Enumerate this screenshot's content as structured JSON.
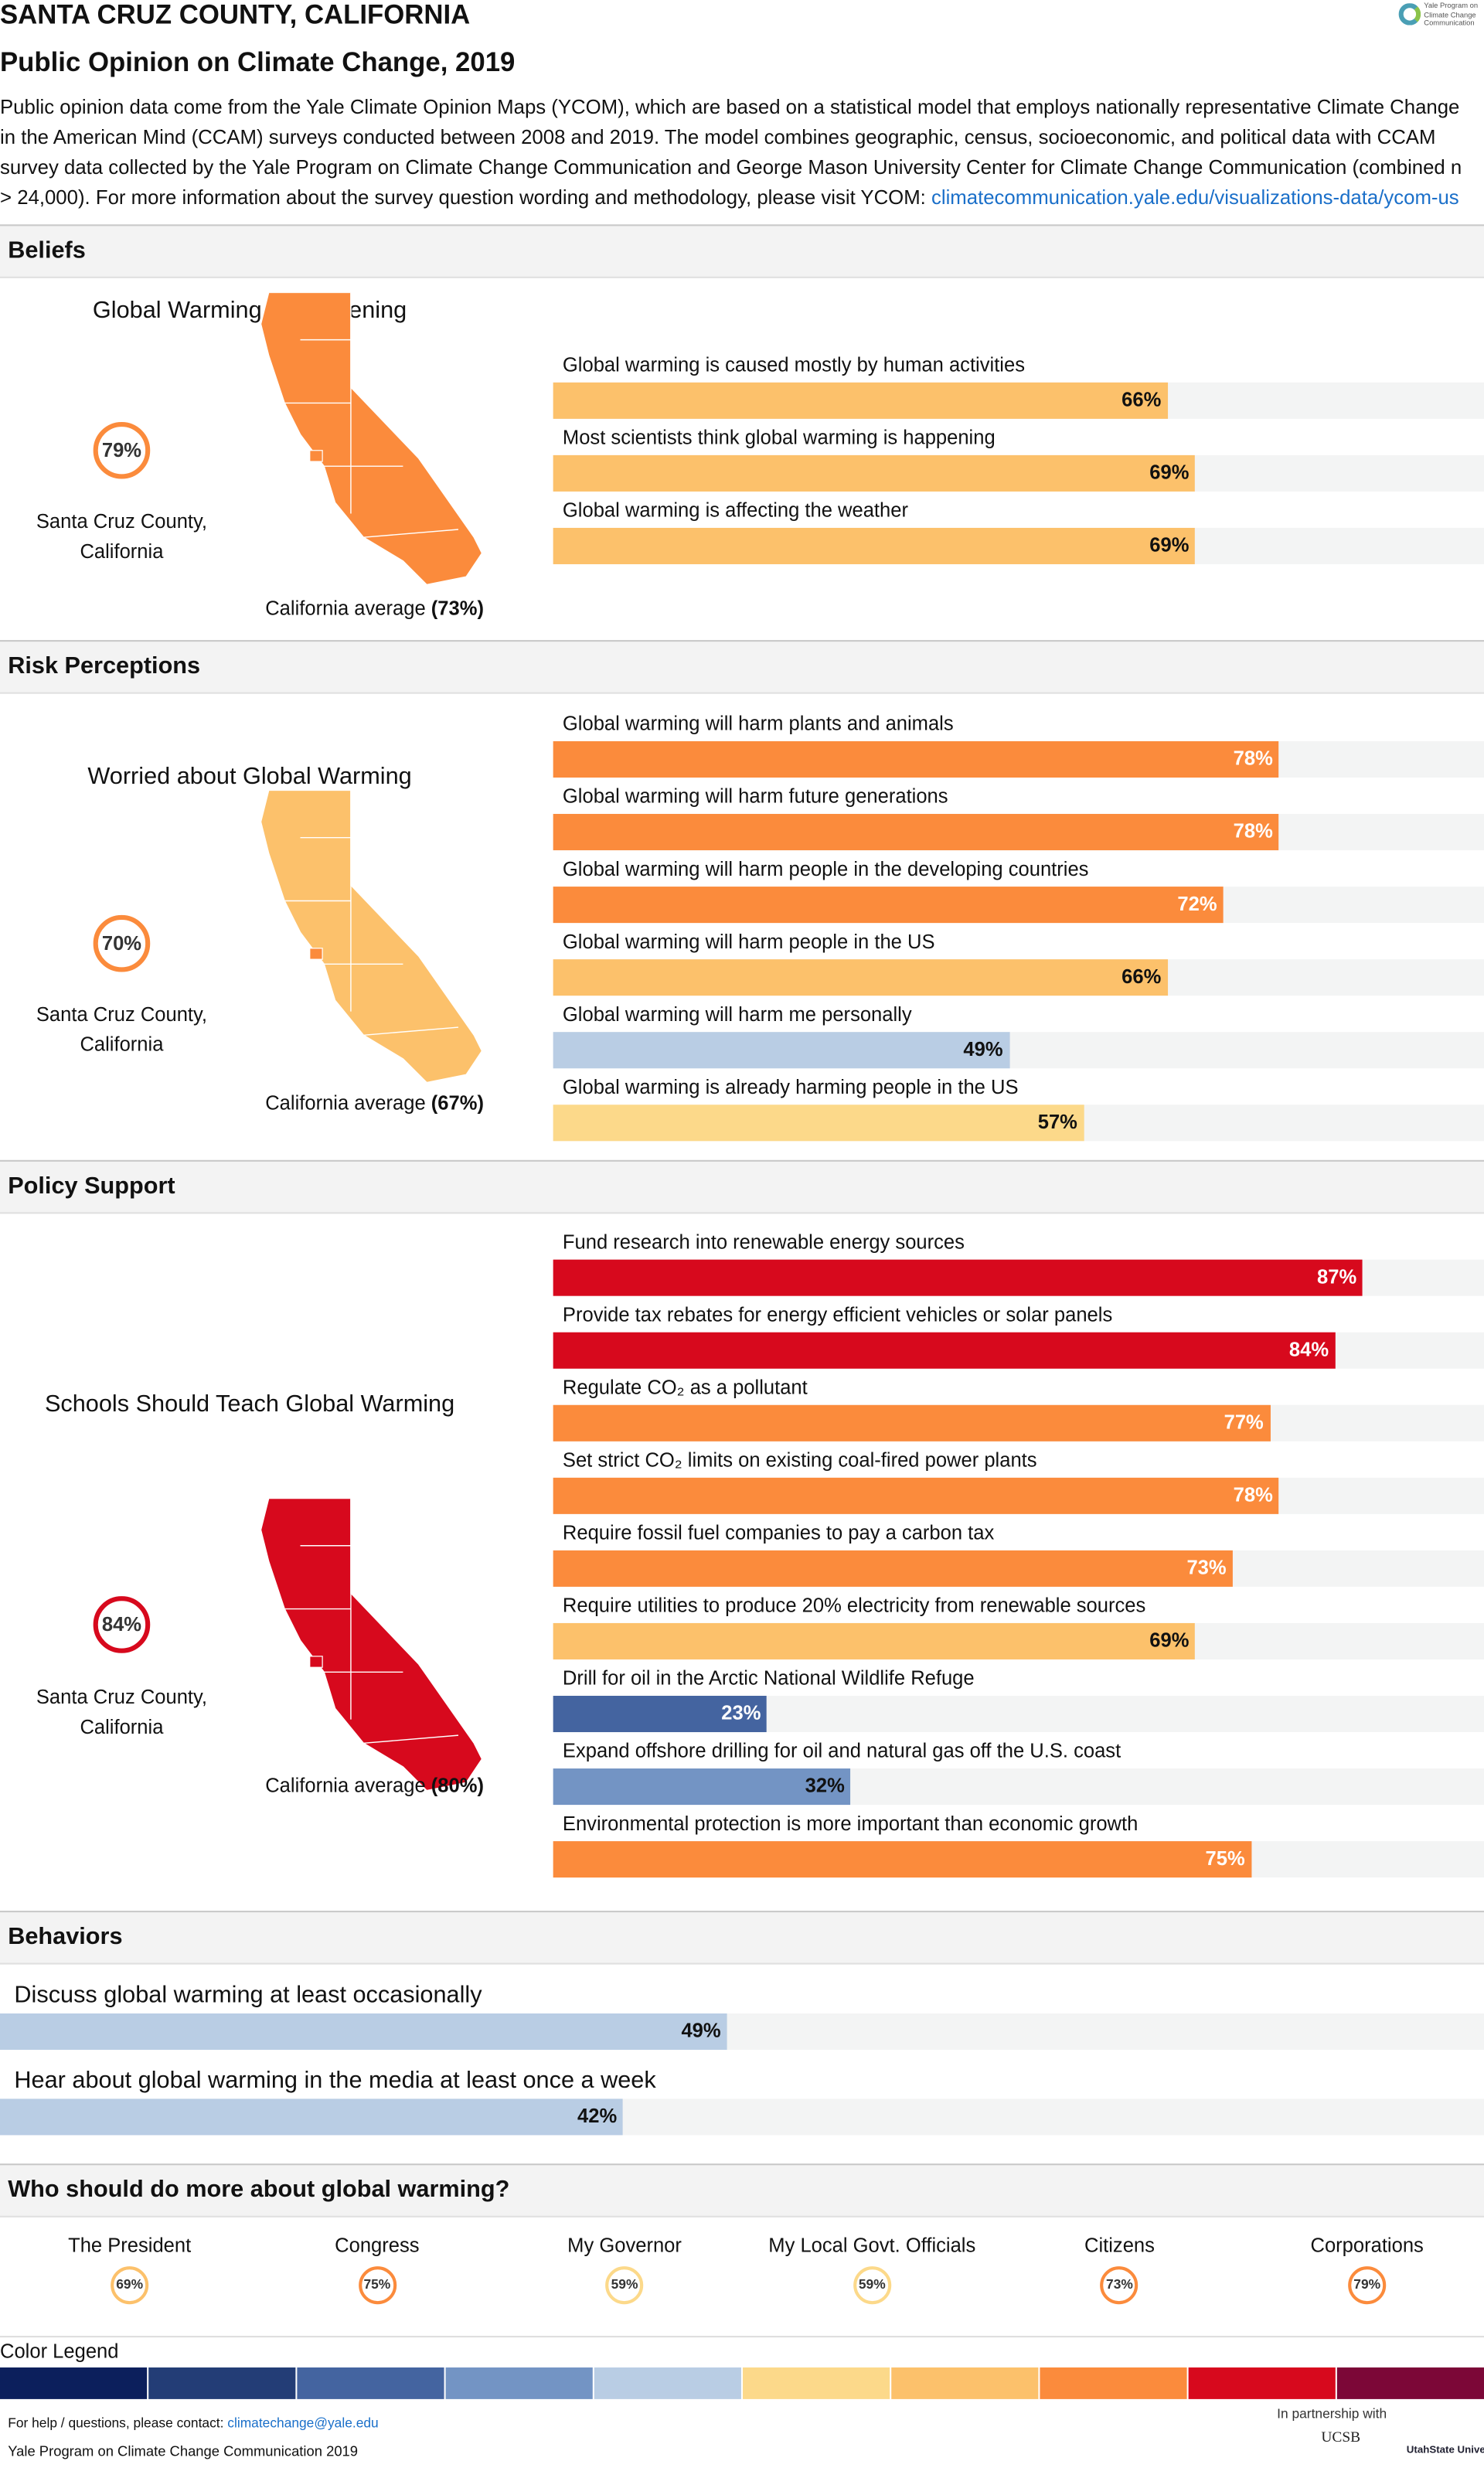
{
  "header": {
    "title": "SANTA CRUZ COUNTY, CALIFORNIA",
    "subtitle": "Public Opinion on Climate Change, 2019",
    "description": "Public opinion data come from the Yale Climate Opinion Maps (YCOM), which are based on a statistical model that employs nationally representative Climate Change in the American Mind (CCAM) surveys conducted between 2008 and 2019. The model combines geographic, census, socioeconomic, and political data with CCAM survey data collected by the Yale Program on Climate Change Communication and George Mason University Center for Climate Change Communication (combined n > 24,000). For more information about the survey question wording and methodology, please visit YCOM: ",
    "link": "climatecommunication.yale.edu/visualizations-data/ycom-us",
    "logo": "Yale Program on Climate Change Communication"
  },
  "sections": [
    {
      "title": "Beliefs",
      "map": {
        "title": "Global Warming is Happening",
        "county_value": {
          "value": 79,
          "label": "79%"
        },
        "county": "Santa Cruz County, California",
        "average_prefix": "California average",
        "average": {
          "value": 73,
          "label": "(73%)"
        }
      },
      "bars": [
        {
          "label": "Global warming is caused mostly by human activities",
          "value": 66,
          "value_label": "66%"
        },
        {
          "label": "Most scientists think global warming is happening",
          "value": 69,
          "value_label": "69%"
        },
        {
          "label": "Global warming is affecting the weather",
          "value": 69,
          "value_label": "69%"
        }
      ]
    },
    {
      "title": "Risk Perceptions",
      "map": {
        "title": "Worried about Global Warming",
        "county_value": {
          "value": 70,
          "label": "70%"
        },
        "county": "Santa Cruz County, California",
        "average_prefix": "California average",
        "average": {
          "value": 67,
          "label": "(67%)"
        }
      },
      "bars": [
        {
          "label": "Global warming will harm plants and animals",
          "value": 78,
          "value_label": "78%"
        },
        {
          "label": "Global warming will harm future generations",
          "value": 78,
          "value_label": "78%"
        },
        {
          "label": "Global warming will harm people in the developing countries",
          "value": 72,
          "value_label": "72%"
        },
        {
          "label": "Global warming will harm people in the US",
          "value": 66,
          "value_label": "66%"
        },
        {
          "label": "Global warming will harm me personally",
          "value": 49,
          "value_label": "49%"
        },
        {
          "label": "Global warming is already harming people in the US",
          "value": 57,
          "value_label": "57%"
        }
      ]
    },
    {
      "title": "Policy Support",
      "map": {
        "title": "Schools Should Teach Global Warming",
        "county_value": {
          "value": 84,
          "label": "84%"
        },
        "county": "Santa Cruz County, California",
        "average_prefix": "California average",
        "average": {
          "value": 80,
          "label": "(80%)"
        }
      },
      "bars": [
        {
          "label": "Fund research into renewable energy sources",
          "value": 87,
          "value_label": "87%"
        },
        {
          "label": "Provide tax rebates for energy efficient vehicles or solar panels",
          "value": 84,
          "value_label": "84%"
        },
        {
          "label": "Regulate CO₂ as a pollutant",
          "value": 77,
          "value_label": "77%"
        },
        {
          "label": "Set strict CO₂ limits on existing coal-fired power plants",
          "value": 78,
          "value_label": "78%"
        },
        {
          "label": "Require fossil fuel companies to pay a carbon tax",
          "value": 73,
          "value_label": "73%"
        },
        {
          "label": "Require utilities to produce 20% electricity from renewable sources",
          "value": 69,
          "value_label": "69%"
        },
        {
          "label": "Drill for oil in the Arctic National Wildlife Refuge",
          "value": 23,
          "value_label": "23%"
        },
        {
          "label": "Expand offshore drilling for oil and natural gas off the U.S. coast",
          "value": 32,
          "value_label": "32%"
        },
        {
          "label": "Environmental protection is more important than economic growth",
          "value": 75,
          "value_label": "75%"
        }
      ]
    }
  ],
  "behaviors": {
    "title": "Behaviors",
    "bars": [
      {
        "label": "Discuss global warming at least occasionally",
        "value": 49,
        "value_label": "49%"
      },
      {
        "label": "Hear about global warming in the media at least once a week",
        "value": 42,
        "value_label": "42%"
      }
    ]
  },
  "actors": {
    "title": "Who should do more about global warming?",
    "items": [
      {
        "name": "The President",
        "value": 69,
        "value_label": "69%"
      },
      {
        "name": "Congress",
        "value": 75,
        "value_label": "75%"
      },
      {
        "name": "My Governor",
        "value": 59,
        "value_label": "59%"
      },
      {
        "name": "My Local Govt. Officials",
        "value": 59,
        "value_label": "59%"
      },
      {
        "name": "Citizens",
        "value": 73,
        "value_label": "73%"
      },
      {
        "name": "Corporations",
        "value": 79,
        "value_label": "79%"
      }
    ]
  },
  "legend": {
    "title": "Color Legend",
    "colors": [
      "#0c1f5c",
      "#233d76",
      "#4464a0",
      "#7394c4",
      "#b9cde4",
      "#fcd98a",
      "#fcc16b",
      "#fb8b3c",
      "#d7091d",
      "#7c0737"
    ]
  },
  "footer": {
    "help": "For help / questions, please contact: ",
    "email": "climatechange@yale.edu",
    "credit": "Yale Program on Climate Change Communication 2019",
    "partnership": "In partnership with",
    "partners": [
      "UCSB",
      "UtahState University."
    ]
  }
}
